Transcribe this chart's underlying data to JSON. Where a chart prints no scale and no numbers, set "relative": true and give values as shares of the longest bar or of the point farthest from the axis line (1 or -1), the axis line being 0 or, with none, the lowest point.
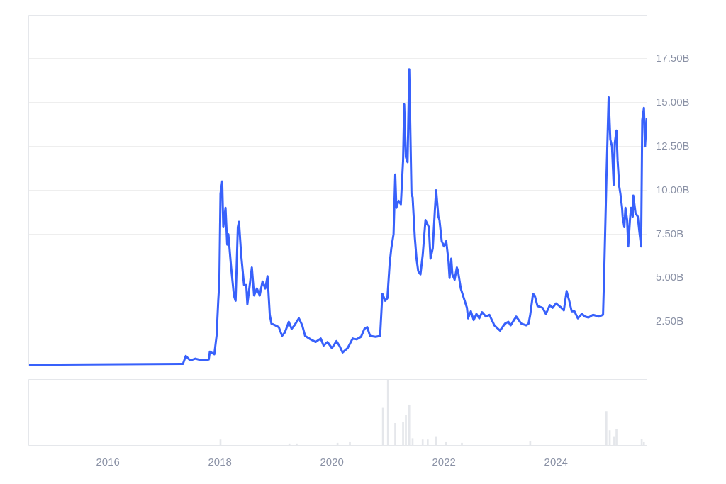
{
  "chart_data": [
    {
      "type": "line",
      "color": "#3861fb",
      "x": [
        2014.58,
        2017.34,
        2017.39,
        2017.47,
        2017.56,
        2017.68,
        2017.8,
        2017.82,
        2017.9,
        2017.94,
        2017.97,
        2017.99,
        2018.01,
        2018.04,
        2018.06,
        2018.1,
        2018.13,
        2018.15,
        2018.2,
        2018.25,
        2018.28,
        2018.32,
        2018.34,
        2018.38,
        2018.43,
        2018.47,
        2018.49,
        2018.54,
        2018.57,
        2018.61,
        2018.66,
        2018.71,
        2018.76,
        2018.81,
        2018.85,
        2018.89,
        2018.92,
        2018.99,
        2019.05,
        2019.11,
        2019.16,
        2019.23,
        2019.28,
        2019.33,
        2019.41,
        2019.47,
        2019.52,
        2019.62,
        2019.71,
        2019.8,
        2019.85,
        2019.92,
        2020.0,
        2020.08,
        2020.14,
        2020.19,
        2020.28,
        2020.37,
        2020.44,
        2020.52,
        2020.58,
        2020.63,
        2020.68,
        2020.78,
        2020.86,
        2020.9,
        2020.95,
        2020.99,
        2021.03,
        2021.06,
        2021.1,
        2021.13,
        2021.15,
        2021.19,
        2021.23,
        2021.27,
        2021.29,
        2021.32,
        2021.35,
        2021.38,
        2021.42,
        2021.44,
        2021.48,
        2021.51,
        2021.54,
        2021.58,
        2021.62,
        2021.65,
        2021.67,
        2021.73,
        2021.76,
        2021.8,
        2021.84,
        2021.86,
        2021.9,
        2021.92,
        2021.96,
        2022.0,
        2022.04,
        2022.08,
        2022.1,
        2022.13,
        2022.15,
        2022.19,
        2022.23,
        2022.25,
        2022.3,
        2022.37,
        2022.41,
        2022.43,
        2022.48,
        2022.53,
        2022.58,
        2022.63,
        2022.68,
        2022.75,
        2022.81,
        2022.9,
        2023.0,
        2023.09,
        2023.15,
        2023.19,
        2023.25,
        2023.29,
        2023.38,
        2023.47,
        2023.51,
        2023.54,
        2023.59,
        2023.62,
        2023.67,
        2023.76,
        2023.82,
        2023.89,
        2023.94,
        2024.0,
        2024.08,
        2024.14,
        2024.19,
        2024.24,
        2024.28,
        2024.33,
        2024.39,
        2024.46,
        2024.52,
        2024.58,
        2024.66,
        2024.77,
        2024.84,
        2024.86,
        2024.9,
        2024.94,
        2024.97,
        2025.0,
        2025.03,
        2025.05,
        2025.08,
        2025.1,
        2025.13,
        2025.15,
        2025.18,
        2025.19,
        2025.22,
        2025.24,
        2025.27,
        2025.29,
        2025.32,
        2025.34,
        2025.37,
        2025.38,
        2025.42,
        2025.46,
        2025.49,
        2025.52,
        2025.54,
        2025.57,
        2025.59,
        2025.62
      ],
      "values": [
        0.05,
        0.1,
        0.55,
        0.3,
        0.4,
        0.3,
        0.35,
        0.8,
        0.65,
        1.7,
        3.7,
        4.8,
        9.8,
        10.5,
        7.9,
        9.0,
        6.9,
        7.5,
        5.6,
        4.0,
        3.7,
        7.9,
        8.2,
        6.3,
        4.6,
        4.6,
        3.5,
        4.8,
        5.6,
        4.0,
        4.4,
        4.0,
        4.8,
        4.4,
        5.1,
        2.9,
        2.4,
        2.3,
        2.2,
        1.7,
        1.9,
        2.5,
        2.1,
        2.3,
        2.7,
        2.3,
        1.7,
        1.5,
        1.35,
        1.55,
        1.15,
        1.35,
        1.0,
        1.4,
        1.1,
        0.75,
        1.0,
        1.55,
        1.5,
        1.65,
        2.1,
        2.2,
        1.7,
        1.65,
        1.7,
        4.1,
        3.7,
        3.85,
        5.8,
        6.7,
        7.5,
        10.9,
        9.0,
        9.4,
        9.2,
        11.7,
        14.9,
        11.9,
        11.6,
        16.9,
        9.8,
        9.6,
        7.3,
        6.1,
        5.4,
        5.2,
        6.3,
        7.5,
        8.3,
        7.9,
        6.1,
        6.7,
        9.0,
        10.0,
        8.5,
        8.3,
        7.1,
        6.8,
        7.1,
        6.0,
        5.0,
        6.1,
        5.2,
        4.9,
        5.6,
        5.4,
        4.4,
        3.7,
        3.3,
        2.7,
        3.1,
        2.6,
        2.95,
        2.7,
        3.05,
        2.8,
        2.9,
        2.3,
        2.0,
        2.4,
        2.5,
        2.3,
        2.6,
        2.8,
        2.4,
        2.3,
        2.4,
        2.9,
        4.1,
        4.0,
        3.4,
        3.3,
        2.95,
        3.45,
        3.3,
        3.55,
        3.35,
        3.15,
        4.25,
        3.65,
        3.1,
        3.1,
        2.7,
        2.95,
        2.8,
        2.75,
        2.9,
        2.8,
        2.9,
        5.2,
        10.6,
        15.3,
        12.9,
        12.5,
        10.3,
        12.7,
        13.4,
        11.7,
        10.2,
        9.8,
        9.0,
        8.5,
        7.9,
        9.0,
        8.3,
        6.8,
        8.3,
        9.0,
        8.5,
        9.7,
        8.7,
        8.5,
        7.6,
        6.8,
        14.0,
        14.7,
        12.5,
        14.1
      ],
      "xlim": [
        2014.58,
        2025.63
      ],
      "xticks": [
        2016,
        2018,
        2020,
        2022,
        2024
      ],
      "ylim": [
        0,
        20
      ],
      "yticks": [
        {
          "value": 2.5,
          "label": "2.50B"
        },
        {
          "value": 5,
          "label": "5.00B"
        },
        {
          "value": 7.5,
          "label": "7.50B"
        },
        {
          "value": 10,
          "label": "10.00B"
        },
        {
          "value": 12.5,
          "label": "12.50B"
        },
        {
          "value": 15,
          "label": "15.00B"
        },
        {
          "value": 17.5,
          "label": "17.50B"
        }
      ],
      "grid": "y",
      "tick_labels": "y",
      "marker": "none"
    },
    {
      "type": "bar",
      "color": "#e5e7eb",
      "relative": true,
      "x": [
        2018.01,
        2019.24,
        2019.37,
        2020.1,
        2020.32,
        2020.91,
        2021.0,
        2021.13,
        2021.27,
        2021.32,
        2021.38,
        2021.44,
        2021.62,
        2021.71,
        2021.86,
        2022.04,
        2022.32,
        2023.54,
        2024.9,
        2024.96,
        2025.04,
        2025.08,
        2025.53,
        2025.57
      ],
      "values": [
        0.08,
        0.02,
        0.02,
        0.03,
        0.04,
        0.56,
        1,
        0.33,
        0.35,
        0.45,
        0.61,
        0.1,
        0.08,
        0.08,
        0.13,
        0.04,
        0.03,
        0.05,
        0.51,
        0.22,
        0.13,
        0.24,
        0.09,
        0.04
      ],
      "xlim": [
        2014.58,
        2025.63
      ],
      "xticks": [
        2016,
        2018,
        2020,
        2022,
        2024
      ],
      "tick_labels": "x"
    }
  ]
}
